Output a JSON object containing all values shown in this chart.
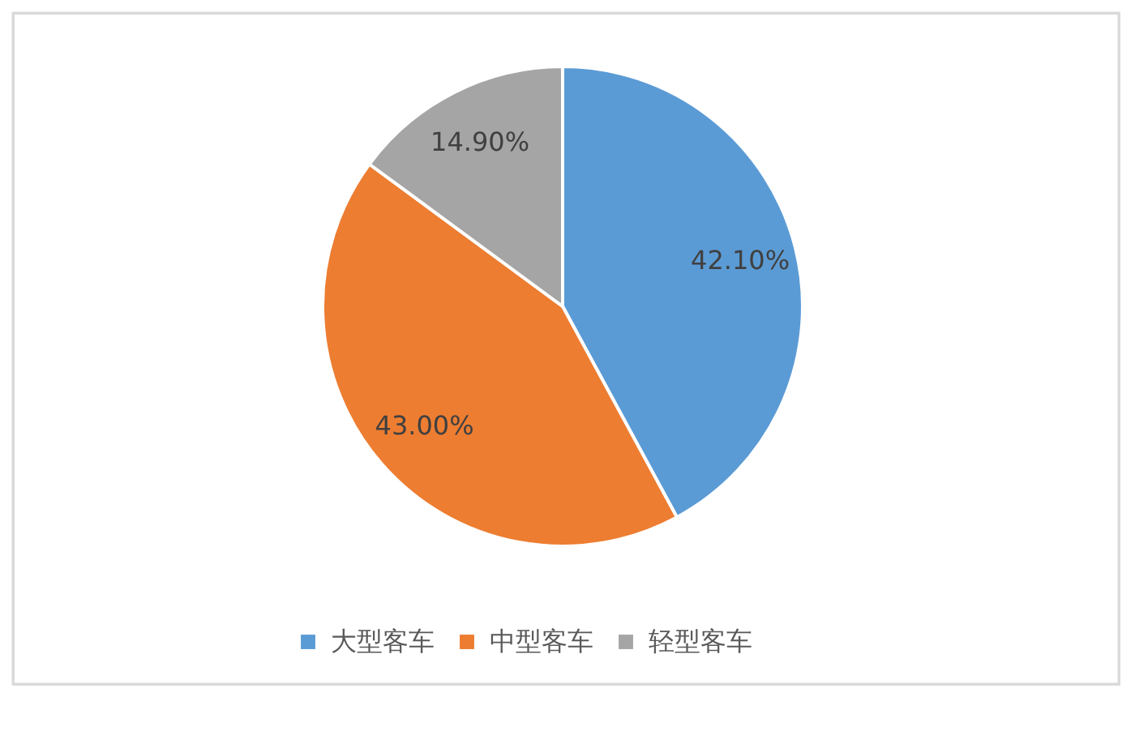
{
  "chart_data": {
    "type": "pie",
    "categories": [
      "大型客车",
      "中型客车",
      "轻型客车"
    ],
    "values": [
      42.1,
      43.0,
      14.9
    ],
    "colors": [
      "#5b9bd5",
      "#ed7d31",
      "#a5a5a5"
    ],
    "value_labels": [
      "42.10%",
      "43.00%",
      "14.90%"
    ],
    "legend": "bottom"
  }
}
